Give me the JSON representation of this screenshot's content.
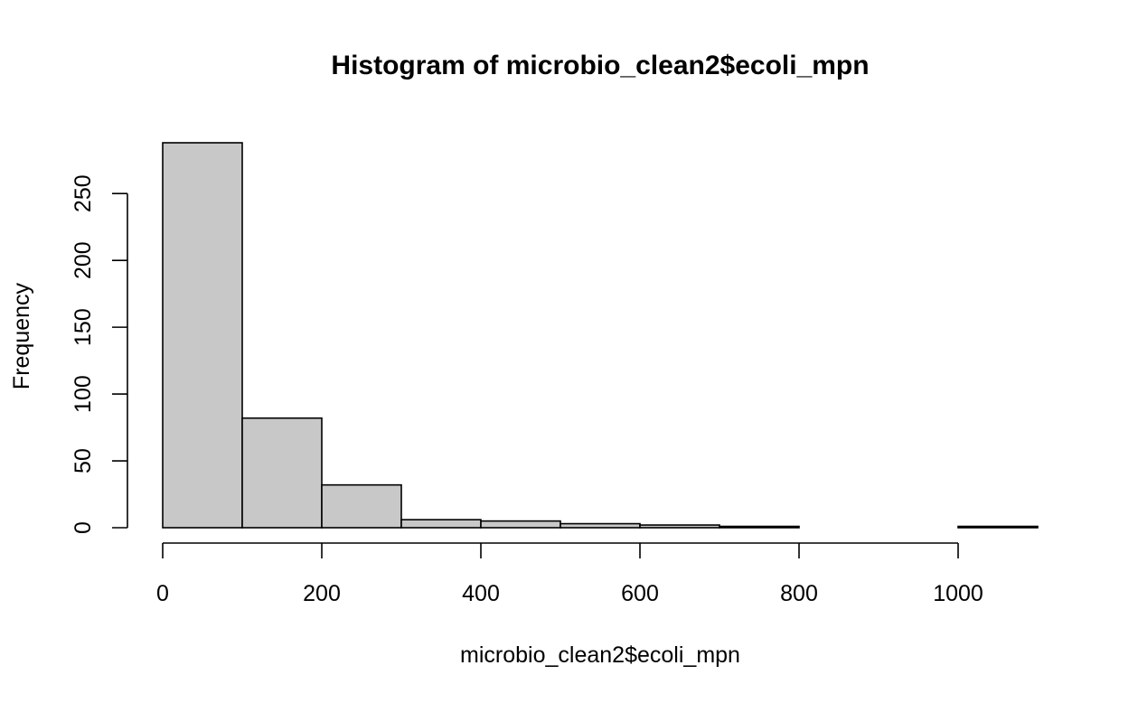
{
  "chart_data": {
    "type": "histogram",
    "title": "Histogram of microbio_clean2$ecoli_mpn",
    "xlabel": "microbio_clean2$ecoli_mpn",
    "ylabel": "Frequency",
    "bin_edges": [
      0,
      100,
      200,
      300,
      400,
      500,
      600,
      700,
      800,
      900,
      1000,
      1100
    ],
    "counts": [
      288,
      82,
      32,
      6,
      5,
      3,
      2,
      1,
      0,
      0,
      1
    ],
    "xlim": [
      0,
      1100
    ],
    "ylim": [
      0,
      288
    ],
    "x_ticks": [
      0,
      200,
      400,
      600,
      800,
      1000
    ],
    "x_tick_labels": [
      "0",
      "200",
      "400",
      "600",
      "800",
      "1000"
    ],
    "y_ticks": [
      0,
      50,
      100,
      150,
      200,
      250
    ],
    "y_tick_labels": [
      "0",
      "50",
      "100",
      "150",
      "200",
      "250"
    ],
    "bar_color": "#c8c8c8",
    "grid": false
  }
}
